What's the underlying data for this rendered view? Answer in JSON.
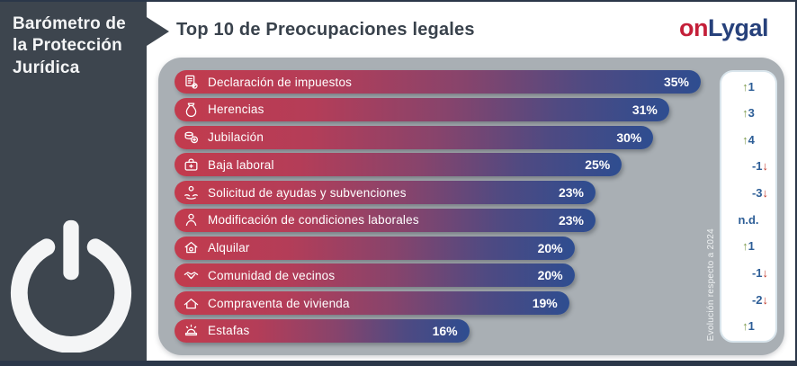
{
  "sidebar": {
    "title": "Barómetro de la Protección Jurídica",
    "bg_color": "#3d454e",
    "logo": "power-icon"
  },
  "header": {
    "title": "Top 10 de Preocupaciones legales",
    "brand": {
      "part1": "on",
      "part2": "Lygal",
      "part1_color": "#c41f39",
      "part2_color": "#27417b"
    }
  },
  "panel": {
    "bg_color": "#a9afb4",
    "note_vertical": "Evolución respecto a 2024"
  },
  "chart_data": {
    "type": "bar",
    "orientation": "horizontal",
    "title": "Top 10 de Preocupaciones legales",
    "unit": "%",
    "value_range": [
      0,
      35
    ],
    "bar_gradient": [
      "#c23b4d",
      "#2e4d90"
    ],
    "comparison_note": "Evolución respecto a 2024",
    "change_colors": {
      "up_arrow": "#7d9b4e",
      "down_arrow": "#c0392b",
      "number": "#2d5e97"
    },
    "rows": [
      {
        "label": "Declaración de impuestos",
        "value": 35,
        "value_label": "35%",
        "icon": "tax-document-icon",
        "bar_width_pct": 100,
        "change_dir": "up",
        "change_value": "1"
      },
      {
        "label": "Herencias",
        "value": 31,
        "value_label": "31%",
        "icon": "inheritance-icon",
        "bar_width_pct": 94,
        "change_dir": "up",
        "change_value": "3"
      },
      {
        "label": "Jubilación",
        "value": 30,
        "value_label": "30%",
        "icon": "retirement-icon",
        "bar_width_pct": 91,
        "change_dir": "up",
        "change_value": "4"
      },
      {
        "label": "Baja laboral",
        "value": 25,
        "value_label": "25%",
        "icon": "sick-leave-icon",
        "bar_width_pct": 85,
        "change_dir": "down",
        "change_value": "-1"
      },
      {
        "label": "Solicitud de ayudas y subvenciones",
        "value": 23,
        "value_label": "23%",
        "icon": "subsidies-icon",
        "bar_width_pct": 80,
        "change_dir": "down",
        "change_value": "-3"
      },
      {
        "label": "Modificación de condiciones laborales",
        "value": 23,
        "value_label": "23%",
        "icon": "labor-conditions-icon",
        "bar_width_pct": 80,
        "change_dir": "none",
        "change_value": "n.d."
      },
      {
        "label": "Alquilar",
        "value": 20,
        "value_label": "20%",
        "icon": "rent-icon",
        "bar_width_pct": 76,
        "change_dir": "up",
        "change_value": "1"
      },
      {
        "label": "Comunidad de vecinos",
        "value": 20,
        "value_label": "20%",
        "icon": "community-icon",
        "bar_width_pct": 76,
        "change_dir": "down",
        "change_value": "-1"
      },
      {
        "label": "Compraventa de vivienda",
        "value": 19,
        "value_label": "19%",
        "icon": "home-purchase-icon",
        "bar_width_pct": 75,
        "change_dir": "down",
        "change_value": "-2"
      },
      {
        "label": "Estafas",
        "value": 16,
        "value_label": "16%",
        "icon": "scams-icon",
        "bar_width_pct": 56,
        "change_dir": "up",
        "change_value": "1"
      }
    ]
  }
}
